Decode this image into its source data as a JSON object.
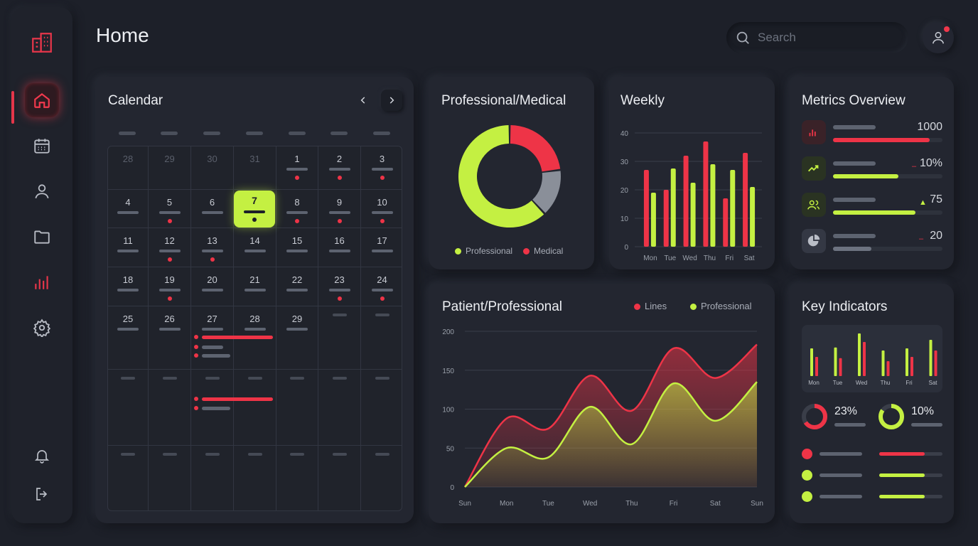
{
  "header": {
    "title": "Home",
    "search_placeholder": "Search"
  },
  "sidebar": {
    "items": [
      "building-icon",
      "home-icon",
      "calendar-icon",
      "user-icon",
      "folder-icon",
      "chart-icon",
      "gear-icon",
      "bell-icon",
      "logout-icon"
    ]
  },
  "calendar": {
    "title": "Calendar",
    "weeks": [
      [
        "28",
        "29",
        "30",
        "31",
        "1",
        "2",
        "3"
      ],
      [
        "4",
        "5",
        "6",
        "7",
        "8",
        "9",
        "10"
      ],
      [
        "11",
        "12",
        "13",
        "14",
        "15",
        "16",
        "17"
      ],
      [
        "18",
        "19",
        "20",
        "21",
        "22",
        "23",
        "24"
      ],
      [
        "25",
        "26",
        "27",
        "28",
        "29",
        "",
        ""
      ]
    ],
    "today": "7"
  },
  "professional_medical": {
    "title": "Professional/Medical",
    "legend": [
      "Professional",
      "Medical"
    ],
    "chart_data": {
      "type": "pie",
      "labels": [
        "Professional",
        "Medical",
        "Other"
      ],
      "values": [
        62,
        23,
        15
      ],
      "colors": [
        "#c4f042",
        "#ee3447",
        "#8a8f99"
      ]
    }
  },
  "weekly": {
    "title": "Weekly",
    "chart_data": {
      "type": "bar",
      "categories": [
        "Mon",
        "Tue",
        "Wed",
        "Thu",
        "Fri",
        "Sat"
      ],
      "series": [
        {
          "values": [
            27,
            20,
            32,
            37,
            17,
            33
          ],
          "color": "#ee3447"
        },
        {
          "values": [
            19,
            27.5,
            22.5,
            29,
            27,
            21
          ],
          "color": "#c4f042"
        }
      ],
      "yticks": [
        "0",
        "10",
        "20",
        "30",
        "40"
      ],
      "ylim": [
        0,
        40
      ]
    }
  },
  "metrics": {
    "title": "Metrics Overview",
    "rows": [
      {
        "icon": "bar-chart-icon",
        "value": "1000",
        "fill": 0.88,
        "color": "#ee3447",
        "tint": "#3a2228"
      },
      {
        "icon": "trend-up-icon",
        "value": "10%",
        "fill": 0.6,
        "color": "#c4f042",
        "tint": "#2a3322"
      },
      {
        "icon": "users-icon",
        "value": "75",
        "fill": 0.75,
        "color": "#c4f042",
        "tint": "#2a3322"
      },
      {
        "icon": "pie-icon",
        "value": "20",
        "fill": 0.35,
        "color": "#6d7380",
        "tint": "#343844"
      }
    ]
  },
  "patient": {
    "title": "Patient/Professional",
    "legend": [
      "Lines",
      "Professional"
    ],
    "chart_data": {
      "type": "area",
      "x": [
        "Sun",
        "Mon",
        "Tue",
        "Wed",
        "Thu",
        "Fri",
        "Sat",
        "Sun"
      ],
      "series": [
        {
          "name": "Lines",
          "values": [
            0,
            88,
            75,
            143,
            98,
            178,
            140,
            183
          ],
          "color": "#ee3447"
        },
        {
          "name": "Professional",
          "values": [
            0,
            50,
            38,
            103,
            55,
            133,
            85,
            135
          ],
          "color": "#c4f042"
        }
      ],
      "yticks": [
        "0",
        "50",
        "100",
        "150",
        "200"
      ],
      "ylim": [
        0,
        200
      ]
    }
  },
  "key_indicators": {
    "title": "Key Indicators",
    "mini_chart": {
      "categories": [
        "Mon",
        "Tue",
        "Wed",
        "Thu",
        "Fri",
        "Sat"
      ],
      "lime": [
        0.65,
        0.67,
        1.0,
        0.6,
        0.65,
        0.85
      ],
      "red": [
        0.45,
        0.42,
        0.8,
        0.35,
        0.45,
        0.6
      ]
    },
    "ring1": {
      "value": "23%",
      "color": "#ee3447"
    },
    "ring2": {
      "value": "10%",
      "color": "#c4f042"
    },
    "list": [
      {
        "color": "#ee3447",
        "fill": 0.72
      },
      {
        "color": "#c4f042",
        "fill": 0.72
      },
      {
        "color": "#c4f042",
        "fill": 0.72
      }
    ]
  }
}
